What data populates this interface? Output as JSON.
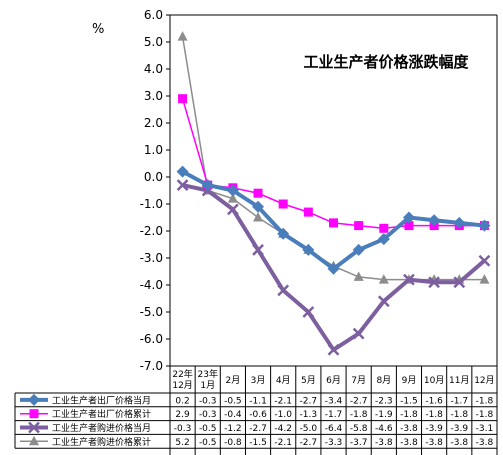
{
  "chart_data": {
    "type": "line",
    "title": "工业生产者价格涨跌幅度",
    "ylabel": "%",
    "ylim": [
      -7.0,
      6.0
    ],
    "ytick_step": 1.0,
    "ytick_labels": [
      "6.0",
      "5.0",
      "4.0",
      "3.0",
      "2.0",
      "1.0",
      "0.0",
      "-1.0",
      "-2.0",
      "-3.0",
      "-4.0",
      "-5.0",
      "-6.0",
      "-7.0"
    ],
    "categories": [
      [
        "22年",
        "12月"
      ],
      [
        "23年",
        "1月"
      ],
      [
        "2月"
      ],
      [
        "3月"
      ],
      [
        "4月"
      ],
      [
        "5月"
      ],
      [
        "6月"
      ],
      [
        "7月"
      ],
      [
        "8月"
      ],
      [
        "9月"
      ],
      [
        "10月"
      ],
      [
        "11月"
      ],
      [
        "12月"
      ]
    ],
    "series": [
      {
        "name": "工业生产者出厂价格当月",
        "color": "#4a7ebb",
        "marker": "diamond",
        "values": [
          0.2,
          -0.3,
          -0.5,
          -1.1,
          -2.1,
          -2.7,
          -3.4,
          -2.7,
          -2.3,
          -1.5,
          -1.6,
          -1.7,
          -1.8
        ],
        "labels": [
          "0.2",
          "-0.3",
          "-0.5",
          "-1.1",
          "-2.1",
          "-2.7",
          "-3.4",
          "-2.7",
          "-2.3",
          "-1.5",
          "-1.6",
          "-1.7",
          "-1.8"
        ]
      },
      {
        "name": "工业生产者出厂价格累计",
        "color": "#ff00ff",
        "marker": "square",
        "values": [
          2.9,
          -0.3,
          -0.4,
          -0.6,
          -1.0,
          -1.3,
          -1.7,
          -1.8,
          -1.9,
          -1.8,
          -1.8,
          -1.8,
          -1.8
        ],
        "labels": [
          "2.9",
          "-0.3",
          "-0.4",
          "-0.6",
          "-1.0",
          "-1.3",
          "-1.7",
          "-1.8",
          "-1.9",
          "-1.8",
          "-1.8",
          "-1.8",
          "-1.8"
        ]
      },
      {
        "name": "工业生产者购进价格当月",
        "color": "#7d5fa0",
        "marker": "x",
        "values": [
          -0.3,
          -0.5,
          -1.2,
          -2.7,
          -4.2,
          -5.0,
          -6.4,
          -5.8,
          -4.6,
          -3.8,
          -3.9,
          -3.9,
          -3.1
        ],
        "labels": [
          "-0.3",
          "-0.5",
          "-1.2",
          "-2.7",
          "-4.2",
          "-5.0",
          "-6.4",
          "-5.8",
          "-4.6",
          "-3.8",
          "-3.9",
          "-3.9",
          "-3.1"
        ]
      },
      {
        "name": "工业生产者购进价格累计",
        "color": "#8c8c8c",
        "marker": "triangle",
        "values": [
          5.2,
          -0.5,
          -0.8,
          -1.5,
          -2.1,
          -2.7,
          -3.3,
          -3.7,
          -3.8,
          -3.8,
          -3.8,
          -3.8,
          -3.8
        ],
        "labels": [
          "5.2",
          "-0.5",
          "-0.8",
          "-1.5",
          "-2.1",
          "-2.7",
          "-3.3",
          "-3.7",
          "-3.8",
          "-3.8",
          "-3.8",
          "-3.8",
          "-3.8"
        ]
      }
    ]
  }
}
